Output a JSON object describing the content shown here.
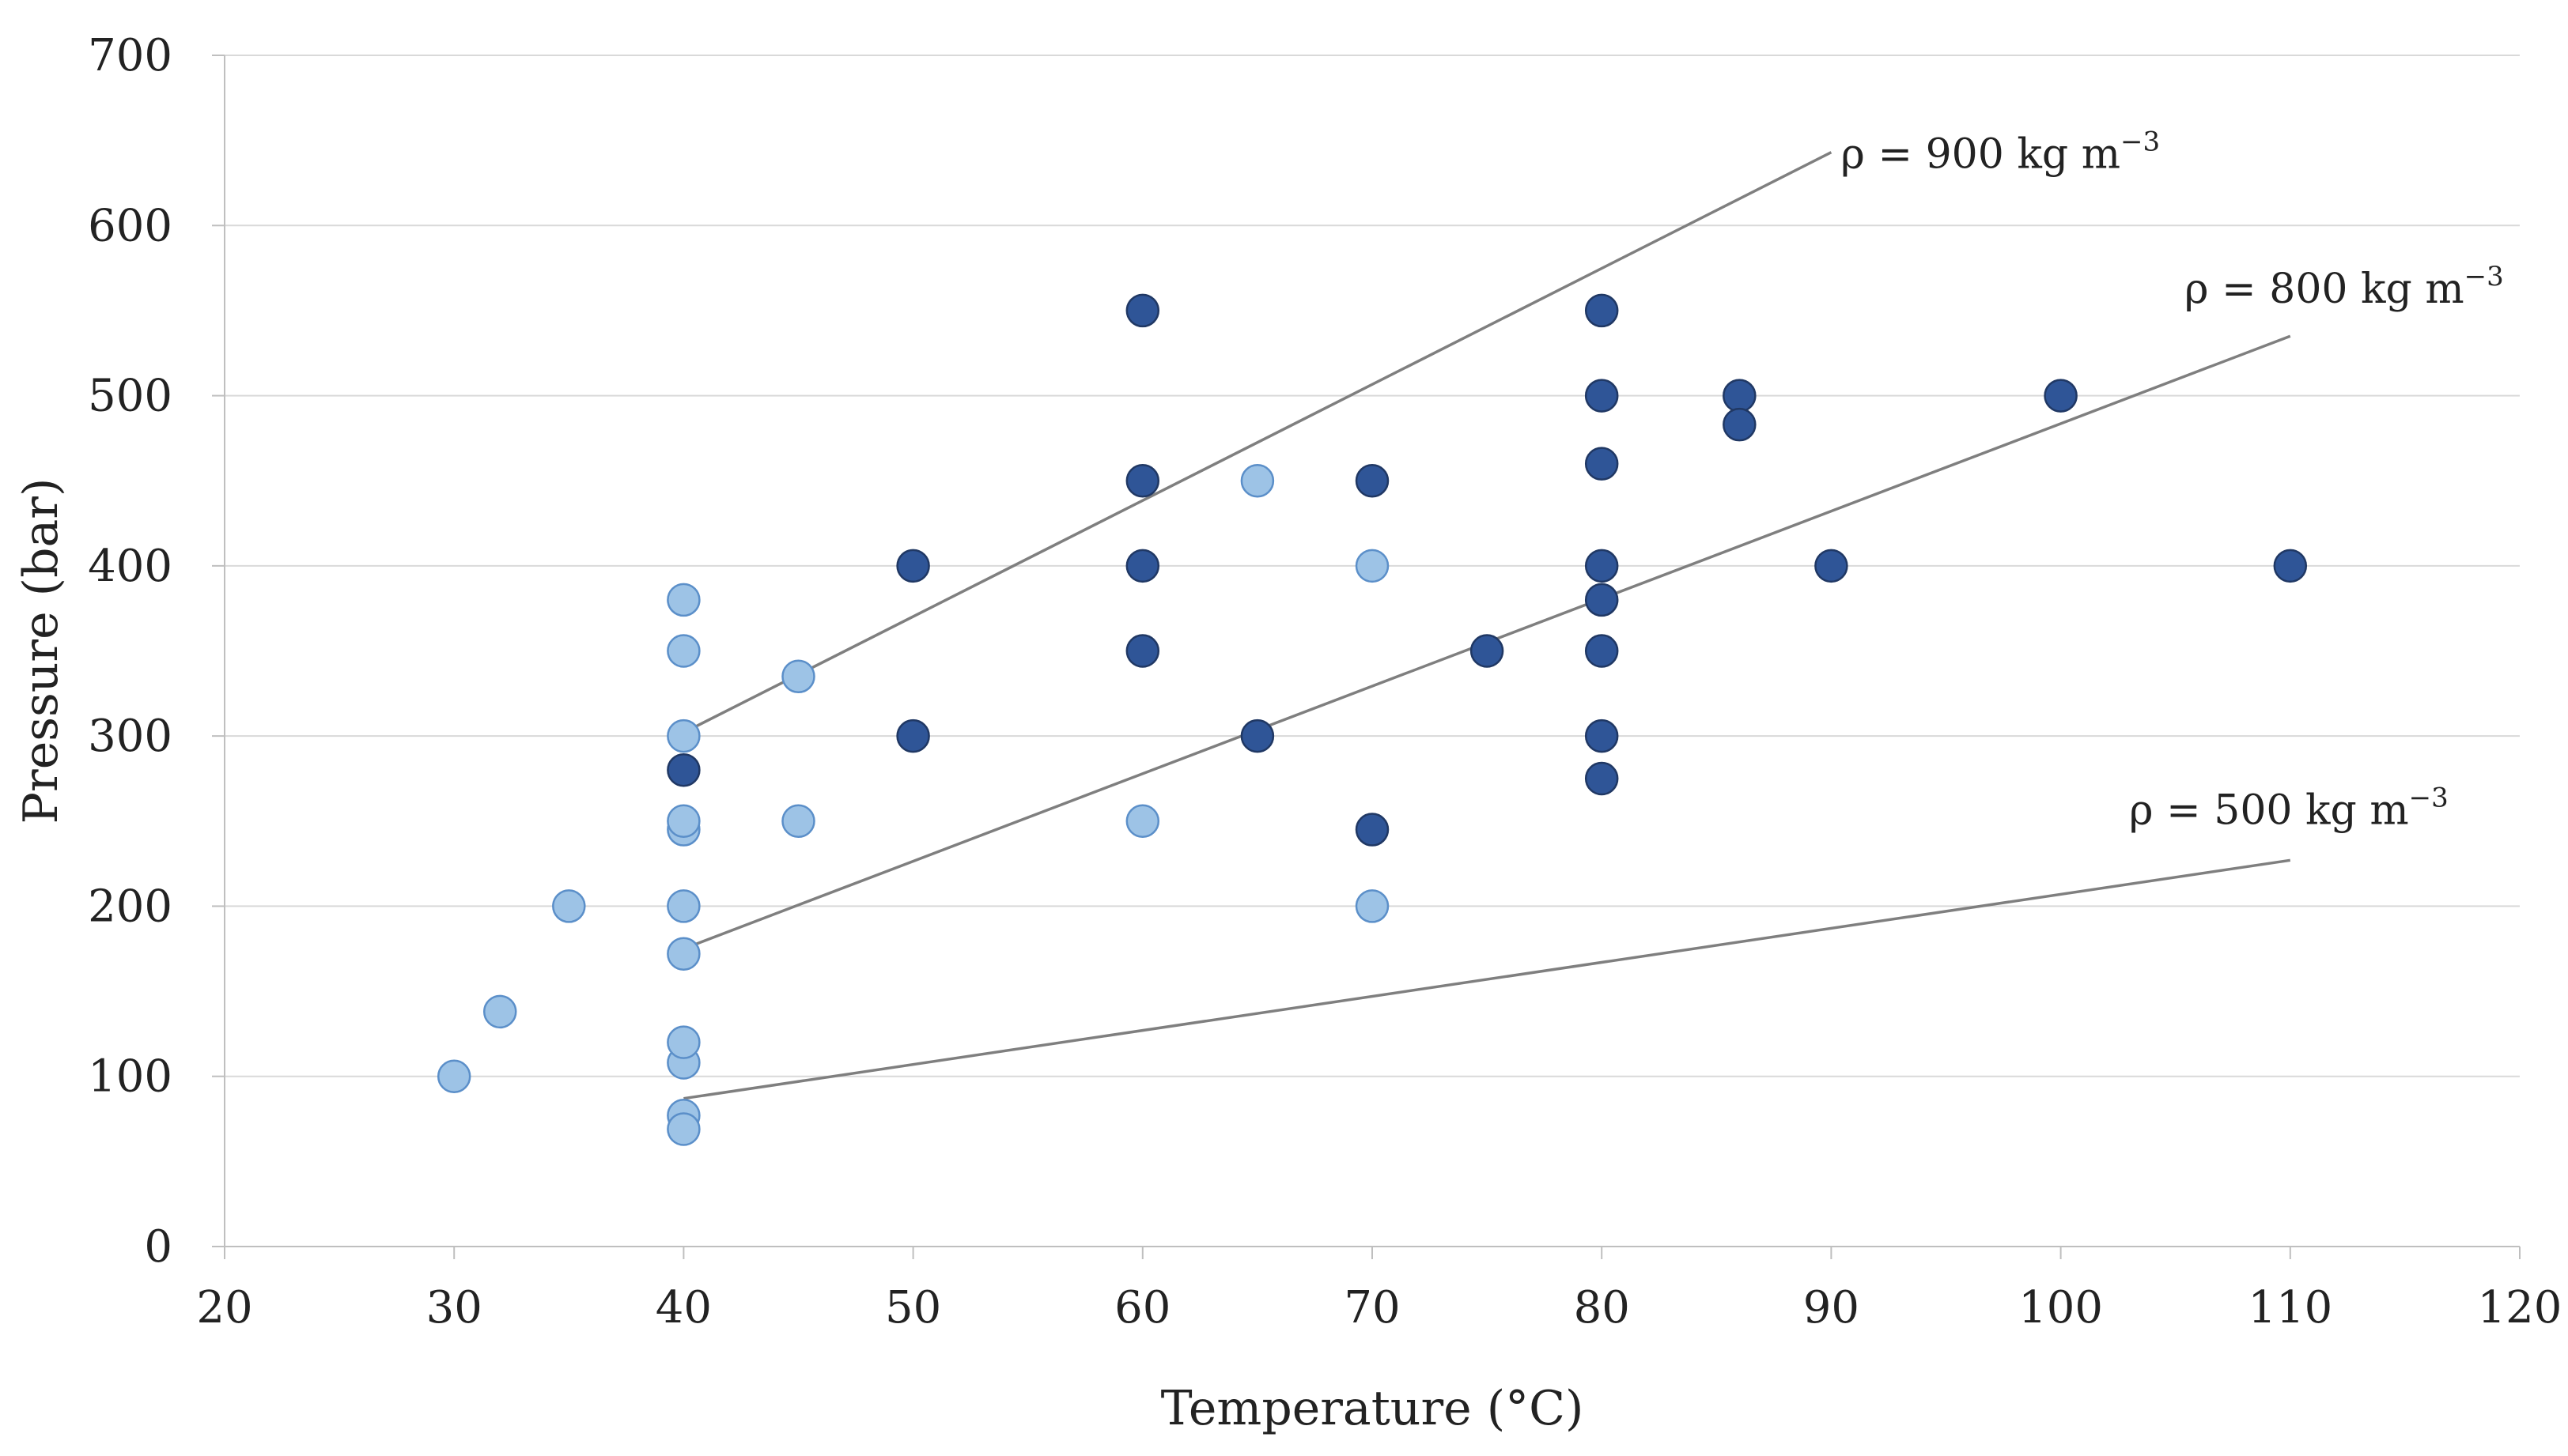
{
  "chart_data": {
    "type": "scatter",
    "xlabel": "Temperature (°C)",
    "ylabel": "Pressure (bar)",
    "xlim": [
      20,
      120
    ],
    "ylim": [
      0,
      700
    ],
    "xticks": [
      20,
      30,
      40,
      50,
      60,
      70,
      80,
      90,
      100,
      110,
      120
    ],
    "yticks": [
      0,
      100,
      200,
      300,
      400,
      500,
      600,
      700
    ],
    "grid": "horizontal",
    "colors": {
      "light_fill": "#9dc3e6",
      "light_stroke": "#5b8fc9",
      "dark_fill": "#2f5597",
      "dark_stroke": "#203864",
      "line": "#7f7f7f",
      "grid": "#d9d9d9",
      "axis": "#bfbfbf"
    },
    "series": [
      {
        "name": "light",
        "style": "light",
        "points": [
          [
            30,
            100
          ],
          [
            32,
            138
          ],
          [
            35,
            200
          ],
          [
            40,
            380
          ],
          [
            40,
            350
          ],
          [
            40,
            300
          ],
          [
            40,
            245
          ],
          [
            40,
            250
          ],
          [
            40,
            200
          ],
          [
            40,
            172
          ],
          [
            40,
            108
          ],
          [
            40,
            120
          ],
          [
            40,
            77
          ],
          [
            40,
            69
          ],
          [
            45,
            335
          ],
          [
            45,
            250
          ],
          [
            60,
            250
          ],
          [
            65,
            450
          ],
          [
            70,
            400
          ],
          [
            70,
            200
          ]
        ]
      },
      {
        "name": "dark",
        "style": "dark",
        "points": [
          [
            40,
            280
          ],
          [
            50,
            400
          ],
          [
            50,
            300
          ],
          [
            60,
            550
          ],
          [
            60,
            450
          ],
          [
            60,
            400
          ],
          [
            60,
            350
          ],
          [
            65,
            300
          ],
          [
            70,
            450
          ],
          [
            70,
            245
          ],
          [
            75,
            350
          ],
          [
            80,
            550
          ],
          [
            80,
            500
          ],
          [
            80,
            460
          ],
          [
            80,
            400
          ],
          [
            80,
            380
          ],
          [
            80,
            350
          ],
          [
            80,
            300
          ],
          [
            80,
            275
          ],
          [
            86,
            500
          ],
          [
            86,
            483
          ],
          [
            90,
            400
          ],
          [
            100,
            500
          ],
          [
            110,
            400
          ]
        ]
      }
    ],
    "lines": [
      {
        "name": "density-900",
        "label": "ρ = 900 kg m",
        "sup": "−3",
        "x": [
          40,
          90
        ],
        "y": [
          302,
          643
        ]
      },
      {
        "name": "density-800",
        "label": "ρ = 800 kg m",
        "sup": "−3",
        "x": [
          40,
          110
        ],
        "y": [
          175,
          535
        ]
      },
      {
        "name": "density-500",
        "label": "ρ = 500 kg m",
        "sup": "−3",
        "x": [
          40,
          110
        ],
        "y": [
          87,
          227
        ]
      }
    ]
  }
}
